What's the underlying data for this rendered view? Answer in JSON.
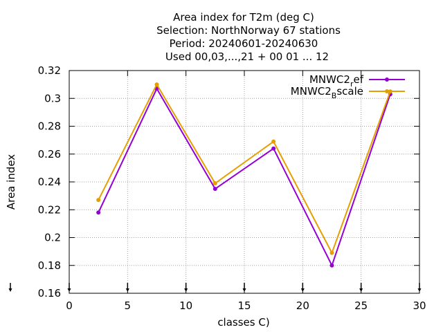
{
  "chart_data": {
    "type": "line",
    "title_lines": [
      "Area index  for T2m (deg C)",
      "Selection: NorthNorway     67 stations",
      "Period: 20240601-20240630",
      "Used 00,03,...,21 + 00 01 ... 12"
    ],
    "xlabel": "classes C)",
    "ylabel": "Area index",
    "xlim": [
      0,
      30
    ],
    "ylim": [
      0.16,
      0.32
    ],
    "xticks": [
      0,
      5,
      10,
      15,
      20,
      25,
      30
    ],
    "yticks": [
      0.16,
      0.18,
      0.2,
      0.22,
      0.24,
      0.26,
      0.28,
      0.3,
      0.32
    ],
    "ytick_labels": [
      "0.16",
      "0.18",
      "0.2",
      "0.22",
      "0.24",
      "0.26",
      "0.28",
      "0.3",
      "0.32"
    ],
    "grid": true,
    "legend_position": "top-right",
    "bottom_markers_x": [
      0,
      5,
      10,
      15,
      20,
      25,
      30
    ],
    "series": [
      {
        "name_main": "MNWC2",
        "name_sub": "r",
        "name_rest": "ef",
        "color": "#9400d3",
        "x": [
          2.5,
          7.5,
          12.5,
          17.5,
          22.5,
          27.5
        ],
        "y": [
          0.218,
          0.307,
          0.235,
          0.264,
          0.18,
          0.303
        ]
      },
      {
        "name_main": "MNWC2",
        "name_sub": "B",
        "name_rest": "scale",
        "color": "#e69f00",
        "x": [
          2.5,
          7.5,
          12.5,
          17.5,
          22.5,
          27.5
        ],
        "y": [
          0.227,
          0.31,
          0.239,
          0.269,
          0.189,
          0.305
        ]
      }
    ]
  }
}
